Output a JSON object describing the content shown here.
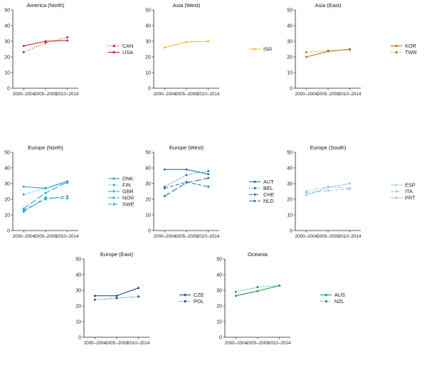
{
  "chart_data": [
    {
      "type": "line",
      "title": "America (North)",
      "categories": [
        "2000–2004",
        "2005–2009",
        "2010–2014"
      ],
      "ylim": [
        0,
        50
      ],
      "yticks": [
        0,
        10,
        20,
        30,
        40,
        50
      ],
      "grid": false,
      "legend_position": "right",
      "series": [
        {
          "name": "CAN",
          "values": [
            23,
            29,
            32.5
          ],
          "color": "#c62828",
          "dash": "dotted"
        },
        {
          "name": "USA",
          "values": [
            27,
            30,
            30.5
          ],
          "color": "#c62828",
          "dash": "solid"
        }
      ]
    },
    {
      "type": "line",
      "title": "Asia (West)",
      "categories": [
        "2000–2004",
        "2005–2009",
        "2010–2014"
      ],
      "ylim": [
        0,
        50
      ],
      "yticks": [
        0,
        10,
        20,
        30,
        40,
        50
      ],
      "grid": false,
      "legend_position": "right",
      "series": [
        {
          "name": "ISR",
          "values": [
            26,
            29.5,
            30
          ],
          "color": "#f5b82e",
          "dash": "solid"
        }
      ]
    },
    {
      "type": "line",
      "title": "Asia (East)",
      "categories": [
        "2000–2004",
        "2005–2009",
        "2010–2014"
      ],
      "ylim": [
        0,
        50
      ],
      "yticks": [
        0,
        10,
        20,
        30,
        40,
        50
      ],
      "grid": false,
      "legend_position": "right",
      "series": [
        {
          "name": "KOR",
          "values": [
            20,
            23.5,
            25
          ],
          "color": "#b5782a",
          "dash": "solid"
        },
        {
          "name": "TWN",
          "values": [
            23,
            24,
            24.5
          ],
          "color": "#b5782a",
          "dash": "dotted"
        }
      ]
    },
    {
      "type": "line",
      "title": "Europe (North)",
      "categories": [
        "2000–2004",
        "2005–2009",
        "2010–2014"
      ],
      "ylim": [
        0,
        50
      ],
      "yticks": [
        0,
        10,
        20,
        30,
        40,
        50
      ],
      "grid": false,
      "legend_position": "right",
      "series": [
        {
          "name": "DNK",
          "values": [
            28,
            27,
            31.5
          ],
          "color": "#29a3d9",
          "dash": "solid"
        },
        {
          "name": "FIN",
          "values": [
            23,
            27,
            30.5
          ],
          "color": "#29a3d9",
          "dash": "dotted"
        },
        {
          "name": "GBR",
          "values": [
            12,
            21,
            20.5
          ],
          "color": "#29a3d9",
          "dash": "dashdot"
        },
        {
          "name": "NOR",
          "values": [
            14,
            24,
            31
          ],
          "color": "#29a3d9",
          "dash": "longdash"
        },
        {
          "name": "SWE",
          "values": [
            13,
            20,
            22
          ],
          "color": "#29a3d9",
          "dash": "dashed"
        }
      ]
    },
    {
      "type": "line",
      "title": "Europe (West)",
      "categories": [
        "2000–2004",
        "2005–2009",
        "2010–2014"
      ],
      "ylim": [
        0,
        50
      ],
      "yticks": [
        0,
        10,
        20,
        30,
        40,
        50
      ],
      "grid": false,
      "legend_position": "right",
      "series": [
        {
          "name": "AUT",
          "values": [
            39,
            39,
            36
          ],
          "color": "#1f78b4",
          "dash": "solid"
        },
        {
          "name": "BEL",
          "values": [
            28,
            35.5,
            38
          ],
          "color": "#1f78b4",
          "dash": "dotted"
        },
        {
          "name": "CHE",
          "values": [
            27,
            31,
            28
          ],
          "color": "#1f78b4",
          "dash": "dashed"
        },
        {
          "name": "NLD",
          "values": [
            22,
            30.5,
            33.5
          ],
          "color": "#1f78b4",
          "dash": "longdash"
        }
      ]
    },
    {
      "type": "line",
      "title": "Europe (South)",
      "categories": [
        "2000–2004",
        "2005–2009",
        "2010–2014"
      ],
      "ylim": [
        0,
        50
      ],
      "yticks": [
        0,
        10,
        20,
        30,
        40,
        50
      ],
      "grid": false,
      "legend_position": "right",
      "series": [
        {
          "name": "ESP",
          "values": [
            25,
            28,
            27
          ],
          "color": "#9ecae8",
          "dash": "dashdot"
        },
        {
          "name": "ITA",
          "values": [
            24,
            25.5,
            26.5
          ],
          "color": "#9ecae8",
          "dash": "dashed"
        },
        {
          "name": "PRT",
          "values": [
            22.5,
            27.5,
            30
          ],
          "color": "#9ecae8",
          "dash": "solid"
        }
      ]
    },
    {
      "type": "line",
      "title": "Europe (East)",
      "categories": [
        "2000–2004",
        "2005–2009",
        "2010–2014"
      ],
      "ylim": [
        0,
        50
      ],
      "yticks": [
        0,
        10,
        20,
        30,
        40,
        50
      ],
      "grid": false,
      "legend_position": "right",
      "series": [
        {
          "name": "CZE",
          "values": [
            26.5,
            26.5,
            31.5
          ],
          "color": "#1f4e99",
          "dash": "solid"
        },
        {
          "name": "POL",
          "values": [
            24,
            25,
            26
          ],
          "color": "#1f4e99",
          "dash": "dotted"
        }
      ]
    },
    {
      "type": "line",
      "title": "Oceania",
      "categories": [
        "2000–2004",
        "2005–2009",
        "2010–2014"
      ],
      "ylim": [
        0,
        50
      ],
      "yticks": [
        0,
        10,
        20,
        30,
        40,
        50
      ],
      "grid": false,
      "legend_position": "right",
      "series": [
        {
          "name": "AUS",
          "values": [
            26.5,
            29.5,
            33
          ],
          "color": "#1e9e4a",
          "dash": "solid"
        },
        {
          "name": "NZL",
          "values": [
            29,
            32,
            33
          ],
          "color": "#1e9e4a",
          "dash": "dotted"
        }
      ]
    }
  ]
}
